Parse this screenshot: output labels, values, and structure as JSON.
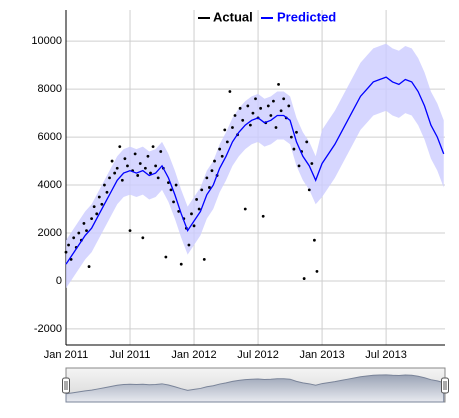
{
  "chart_data": {
    "type": "scatter-line",
    "xlim": [
      2011.0,
      2013.96
    ],
    "xticks": [
      {
        "value": 2011.0,
        "label": "Jan 2011"
      },
      {
        "value": 2011.5,
        "label": "Jul 2011"
      },
      {
        "value": 2012.0,
        "label": "Jan 2012"
      },
      {
        "value": 2012.5,
        "label": "Jul 2012"
      },
      {
        "value": 2013.0,
        "label": "Jan 2013"
      },
      {
        "value": 2013.5,
        "label": "Jul 2013"
      }
    ],
    "ylim": [
      -2670,
      11300
    ],
    "yticks": [
      -2000,
      0,
      2000,
      4000,
      6000,
      8000,
      10000
    ],
    "grid": true,
    "legend": "top",
    "series": [
      {
        "name": "Actual",
        "color": "#000000",
        "x": [
          2011.0,
          2011.02,
          2011.04,
          2011.06,
          2011.08,
          2011.1,
          2011.12,
          2011.14,
          2011.16,
          2011.18,
          2011.2,
          2011.22,
          2011.24,
          2011.26,
          2011.28,
          2011.3,
          2011.32,
          2011.34,
          2011.36,
          2011.38,
          2011.4,
          2011.42,
          2011.44,
          2011.46,
          2011.48,
          2011.5,
          2011.52,
          2011.54,
          2011.56,
          2011.58,
          2011.6,
          2011.62,
          2011.64,
          2011.66,
          2011.68,
          2011.7,
          2011.72,
          2011.74,
          2011.76,
          2011.78,
          2011.8,
          2011.82,
          2011.84,
          2011.86,
          2011.88,
          2011.9,
          2011.92,
          2011.94,
          2011.96,
          2011.98,
          2012.0,
          2012.02,
          2012.04,
          2012.06,
          2012.08,
          2012.1,
          2012.12,
          2012.14,
          2012.16,
          2012.18,
          2012.2,
          2012.22,
          2012.24,
          2012.26,
          2012.28,
          2012.3,
          2012.32,
          2012.34,
          2012.36,
          2012.38,
          2012.4,
          2012.42,
          2012.44,
          2012.46,
          2012.48,
          2012.5,
          2012.52,
          2012.54,
          2012.56,
          2012.58,
          2012.6,
          2012.62,
          2012.64,
          2012.66,
          2012.68,
          2012.7,
          2012.72,
          2012.74,
          2012.76,
          2012.78,
          2012.8,
          2012.82,
          2012.84,
          2012.86,
          2012.88,
          2012.9,
          2012.92,
          2012.94,
          2012.96
        ],
        "values": [
          1200,
          1500,
          900,
          1800,
          1400,
          2000,
          1700,
          2400,
          2100,
          600,
          2600,
          3100,
          2800,
          3500,
          3200,
          4000,
          3700,
          4300,
          5000,
          4500,
          4700,
          5600,
          4200,
          5100,
          4800,
          2100,
          4600,
          5300,
          4400,
          4900,
          1800,
          4700,
          5200,
          4500,
          5600,
          4800,
          4300,
          5400,
          4700,
          1000,
          4100,
          3800,
          3300,
          4000,
          2900,
          700,
          2600,
          2200,
          1500,
          2800,
          2300,
          3400,
          3000,
          3800,
          900,
          4300,
          3900,
          4600,
          5000,
          4400,
          5500,
          5200,
          6300,
          5800,
          7900,
          6400,
          6900,
          6100,
          7200,
          6700,
          3000,
          7300,
          6500,
          7000,
          7600,
          6800,
          7200,
          2700,
          6600,
          7300,
          6900,
          7500,
          6400,
          8200,
          7100,
          7600,
          6800,
          7300,
          6000,
          5500,
          6200,
          4800,
          5400,
          100,
          5800,
          3800,
          4900,
          1700,
          400
        ]
      },
      {
        "name": "Predicted",
        "color": "#0000ff",
        "band_color": "#ccccff",
        "x": [
          2011.0,
          2011.05,
          2011.1,
          2011.15,
          2011.2,
          2011.25,
          2011.3,
          2011.35,
          2011.4,
          2011.45,
          2011.5,
          2011.55,
          2011.6,
          2011.65,
          2011.7,
          2011.75,
          2011.8,
          2011.85,
          2011.9,
          2011.95,
          2012.0,
          2012.05,
          2012.1,
          2012.15,
          2012.2,
          2012.25,
          2012.3,
          2012.35,
          2012.4,
          2012.45,
          2012.5,
          2012.55,
          2012.6,
          2012.65,
          2012.7,
          2012.75,
          2012.8,
          2012.85,
          2012.9,
          2012.95,
          2013.0,
          2013.05,
          2013.1,
          2013.15,
          2013.2,
          2013.25,
          2013.3,
          2013.35,
          2013.4,
          2013.45,
          2013.5,
          2013.55,
          2013.6,
          2013.65,
          2013.7,
          2013.75,
          2013.8,
          2013.85,
          2013.9,
          2013.95
        ],
        "values": [
          700,
          1100,
          1500,
          1900,
          2200,
          2700,
          3200,
          3700,
          4200,
          4500,
          4600,
          4500,
          4600,
          4400,
          4500,
          4800,
          4300,
          3600,
          2800,
          2100,
          2500,
          2900,
          3600,
          4000,
          4700,
          5200,
          5800,
          6200,
          6500,
          6700,
          6800,
          6600,
          6700,
          6900,
          6900,
          6700,
          5800,
          5200,
          4800,
          4200,
          4900,
          5300,
          5700,
          6200,
          6700,
          7200,
          7700,
          8000,
          8300,
          8400,
          8500,
          8300,
          8200,
          8400,
          8300,
          7900,
          7300,
          6500,
          6000,
          5300
        ],
        "upper": [
          1700,
          2100,
          2500,
          2900,
          3200,
          3700,
          4200,
          4700,
          5200,
          5500,
          5600,
          5500,
          5600,
          5400,
          5500,
          5800,
          5300,
          4600,
          3800,
          3100,
          3500,
          3900,
          4600,
          5000,
          5700,
          6200,
          6800,
          7200,
          7500,
          7700,
          7800,
          7600,
          7700,
          7900,
          7900,
          7700,
          6800,
          6200,
          5800,
          5200,
          6300,
          6700,
          7100,
          7600,
          8100,
          8600,
          9100,
          9400,
          9700,
          9800,
          9900,
          9700,
          9600,
          9800,
          9700,
          9300,
          8700,
          7900,
          7400,
          6700
        ],
        "lower": [
          -300,
          100,
          500,
          900,
          1200,
          1700,
          2200,
          2700,
          3200,
          3500,
          3600,
          3500,
          3600,
          3400,
          3500,
          3800,
          3300,
          2600,
          1800,
          1100,
          1500,
          1900,
          2600,
          3000,
          3700,
          4200,
          4800,
          5200,
          5500,
          5700,
          5800,
          5600,
          5700,
          5900,
          5900,
          5700,
          4800,
          4200,
          3800,
          3200,
          3500,
          3900,
          4300,
          4800,
          5300,
          5800,
          6300,
          6600,
          6900,
          7000,
          7100,
          6900,
          6800,
          7000,
          6900,
          6500,
          5900,
          5100,
          4600,
          3900
        ]
      }
    ]
  }
}
